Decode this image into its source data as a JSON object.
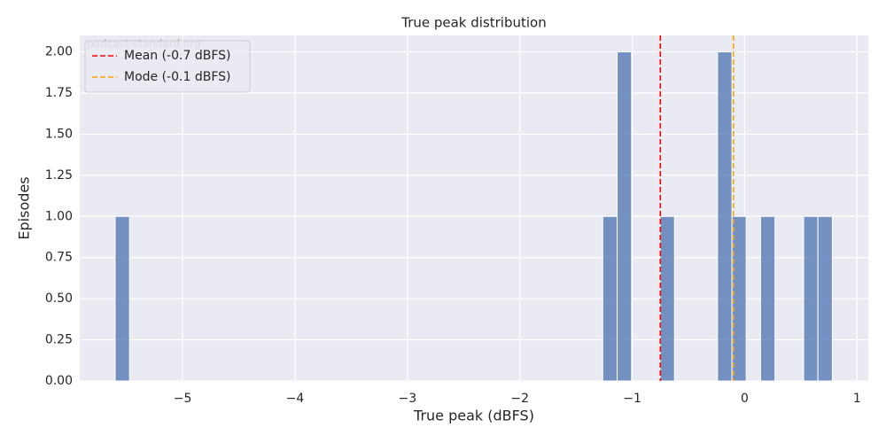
{
  "chart_data": {
    "type": "histogram",
    "title": "True peak distribution",
    "x_label": "True peak (dBFS)",
    "y_label": "Episodes",
    "watermark": "podcast-standard.org",
    "color": "#4c72b0",
    "grid": true,
    "legend": "upper left",
    "bins": [
      -5.6,
      -5.472,
      -5.345,
      -5.217,
      -5.09,
      -4.962,
      -4.834,
      -4.707,
      -4.579,
      -4.452,
      -4.324,
      -4.196,
      -4.069,
      -3.941,
      -3.814,
      -3.686,
      -3.558,
      -3.431,
      -3.303,
      -3.176,
      -3.048,
      -2.92,
      -2.793,
      -2.665,
      -2.538,
      -2.41,
      -2.282,
      -2.155,
      -2.027,
      -1.9,
      -1.772,
      -1.644,
      -1.517,
      -1.389,
      -1.262,
      -1.134,
      -1.006,
      -0.879,
      -0.751,
      -0.624,
      -0.496,
      -0.368,
      -0.241,
      -0.113,
      0.014,
      0.142,
      0.27,
      0.397,
      0.525,
      0.652,
      0.78
    ],
    "values": [
      1,
      0,
      0,
      0,
      0,
      0,
      0,
      0,
      0,
      0,
      0,
      0,
      0,
      0,
      0,
      0,
      0,
      0,
      0,
      0,
      0,
      0,
      0,
      0,
      0,
      0,
      0,
      0,
      0,
      0,
      0,
      0,
      0,
      0,
      1,
      2,
      0,
      0,
      1,
      0,
      0,
      0,
      2,
      1,
      0,
      1,
      0,
      0,
      1,
      1
    ],
    "reference_lines": [
      {
        "name": "Mean (-0.7 dBFS)",
        "value": -0.75,
        "color": "#ff0000"
      },
      {
        "name": "Mode (-0.1 dBFS)",
        "value": -0.1,
        "color": "#ffa500"
      }
    ],
    "xlim": [
      -5.915,
      1.1
    ],
    "xticks": [
      {
        "value": -5,
        "label": "−5"
      },
      {
        "value": -4,
        "label": "−4"
      },
      {
        "value": -3,
        "label": "−3"
      },
      {
        "value": -2,
        "label": "−2"
      },
      {
        "value": -1,
        "label": "−1"
      },
      0,
      1
    ],
    "ylim": [
      0,
      2.1
    ],
    "yticks": [
      {
        "value": 0,
        "label": "0.00"
      },
      {
        "value": 0.25,
        "label": "0.25"
      },
      {
        "value": 0.5,
        "label": "0.50"
      },
      {
        "value": 0.75,
        "label": "0.75"
      },
      {
        "value": 1,
        "label": "1.00"
      },
      {
        "value": 1.25,
        "label": "1.25"
      },
      {
        "value": 1.5,
        "label": "1.50"
      },
      {
        "value": 1.75,
        "label": "1.75"
      },
      {
        "value": 2,
        "label": "2.00"
      }
    ]
  }
}
